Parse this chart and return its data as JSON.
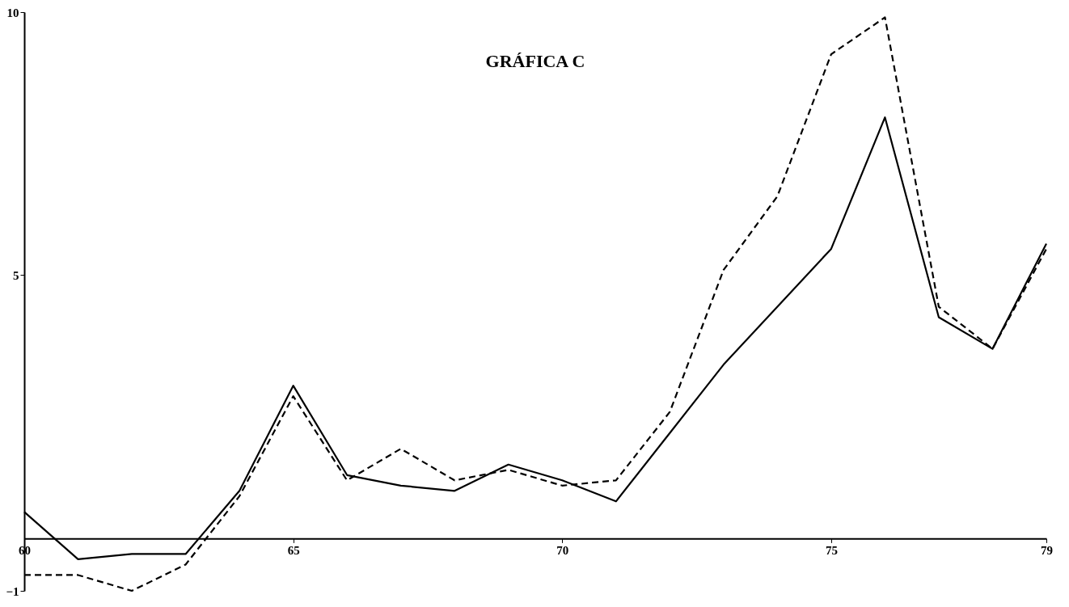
{
  "chart_data": {
    "type": "line",
    "title": "GRÁFICA C",
    "x": [
      60,
      61,
      62,
      63,
      64,
      65,
      66,
      67,
      68,
      69,
      70,
      71,
      72,
      73,
      74,
      75,
      76,
      77,
      78,
      79
    ],
    "series": [
      {
        "color": "#000000",
        "line_style": "solid",
        "values": [
          0.5,
          -0.4,
          -0.3,
          -0.3,
          0.9,
          2.9,
          1.2,
          1.0,
          0.9,
          1.4,
          1.1,
          0.7,
          2.0,
          3.3,
          4.4,
          5.5,
          8.0,
          4.2,
          3.6,
          5.6
        ]
      },
      {
        "color": "#000000",
        "line_style": "dashed",
        "values": [
          -0.7,
          -0.7,
          -1.0,
          -0.5,
          0.8,
          2.7,
          1.1,
          1.7,
          1.1,
          1.3,
          1.0,
          1.1,
          2.4,
          5.1,
          6.5,
          9.2,
          9.9,
          4.4,
          3.6,
          5.5
        ]
      }
    ],
    "xlim": [
      60,
      79
    ],
    "xticks": [
      60,
      65,
      70,
      75,
      79
    ],
    "ylim": [
      -1,
      10
    ],
    "yticks": [
      -1,
      5,
      10
    ],
    "grid": false,
    "marker": "none"
  }
}
